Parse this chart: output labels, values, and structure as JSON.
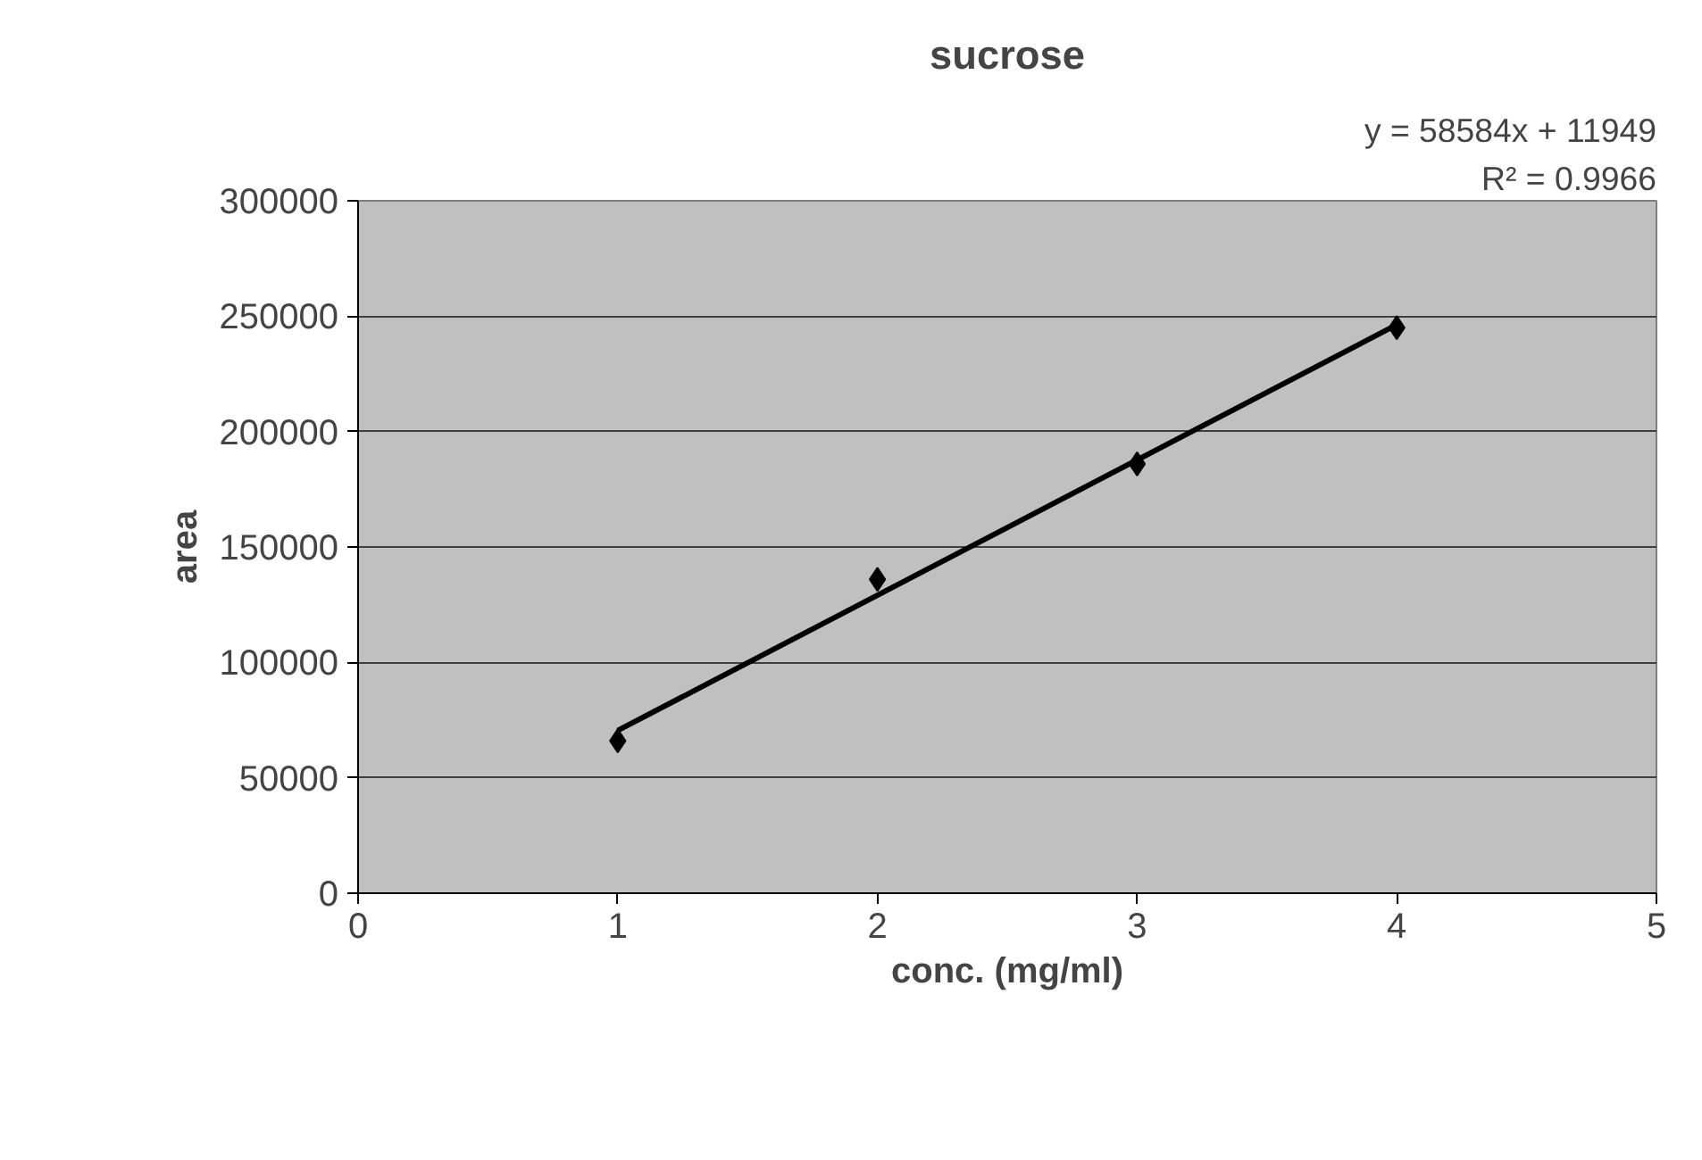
{
  "chart_data": {
    "type": "scatter",
    "title": "sucrose",
    "xlabel": "conc. (mg/ml)",
    "ylabel": "area",
    "annotations": [
      "y = 58584x + 11949",
      "R² = 0.9966"
    ],
    "xlim": [
      0,
      5
    ],
    "xticks": [
      0,
      1,
      2,
      3,
      4,
      5
    ],
    "ylim": [
      0,
      300000
    ],
    "yticks": [
      0,
      50000,
      100000,
      150000,
      200000,
      250000,
      300000
    ],
    "grid": "y",
    "series": [
      {
        "color": "#000000",
        "x": [
          1,
          2,
          3,
          4
        ],
        "values": [
          66000,
          136000,
          186000,
          245000
        ],
        "marker": "diamond"
      },
      {
        "type": "line",
        "color": "#000000",
        "x": [
          1,
          4
        ],
        "values": [
          70500,
          246300
        ],
        "line_style": "solid"
      }
    ]
  }
}
